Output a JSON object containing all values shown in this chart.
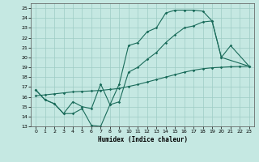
{
  "xlabel": "Humidex (Indice chaleur)",
  "xlim": [
    -0.5,
    23.5
  ],
  "ylim": [
    13,
    25.5
  ],
  "xticks": [
    0,
    1,
    2,
    3,
    4,
    5,
    6,
    7,
    8,
    9,
    10,
    11,
    12,
    13,
    14,
    15,
    16,
    17,
    18,
    19,
    20,
    21,
    22,
    23
  ],
  "yticks": [
    13,
    14,
    15,
    16,
    17,
    18,
    19,
    20,
    21,
    22,
    23,
    24,
    25
  ],
  "bg_color": "#c5e8e2",
  "grid_color": "#9dccc4",
  "line_color": "#1a6b5a",
  "line1_x": [
    0,
    1,
    2,
    3,
    4,
    5,
    6,
    7,
    8,
    9,
    10,
    11,
    12,
    13,
    14,
    15,
    16,
    17,
    18,
    19,
    20,
    21,
    23
  ],
  "line1_y": [
    16.7,
    15.7,
    15.3,
    14.3,
    14.3,
    14.8,
    13.1,
    13.0,
    15.2,
    17.3,
    21.2,
    21.5,
    22.6,
    23.0,
    24.5,
    24.8,
    24.8,
    24.8,
    24.7,
    23.7,
    20.0,
    21.2,
    19.1
  ],
  "line2_x": [
    0,
    1,
    2,
    3,
    4,
    5,
    6,
    7,
    8,
    9,
    10,
    11,
    12,
    13,
    14,
    15,
    16,
    17,
    18,
    19,
    20,
    23
  ],
  "line2_y": [
    16.7,
    15.7,
    15.3,
    14.3,
    15.5,
    15.0,
    14.8,
    17.3,
    15.2,
    15.5,
    18.5,
    19.0,
    19.8,
    20.5,
    21.5,
    22.3,
    23.0,
    23.2,
    23.6,
    23.7,
    20.0,
    19.1
  ],
  "line3_x": [
    0,
    1,
    2,
    3,
    4,
    5,
    6,
    7,
    8,
    9,
    10,
    11,
    12,
    13,
    14,
    15,
    16,
    17,
    18,
    19,
    20,
    21,
    22,
    23
  ],
  "line3_y": [
    16.1,
    16.2,
    16.3,
    16.4,
    16.5,
    16.55,
    16.6,
    16.65,
    16.75,
    16.85,
    17.05,
    17.25,
    17.5,
    17.75,
    18.0,
    18.25,
    18.5,
    18.7,
    18.85,
    18.95,
    19.0,
    19.05,
    19.08,
    19.1
  ]
}
